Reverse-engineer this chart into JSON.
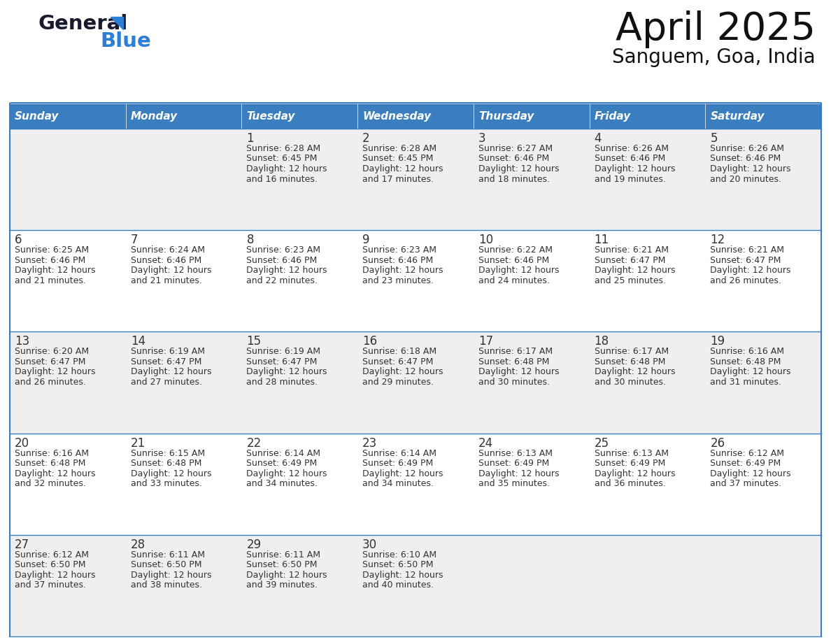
{
  "title": "April 2025",
  "subtitle": "Sanguem, Goa, India",
  "header_color": "#3a7ebf",
  "header_text_color": "#ffffff",
  "days_of_week": [
    "Sunday",
    "Monday",
    "Tuesday",
    "Wednesday",
    "Thursday",
    "Friday",
    "Saturday"
  ],
  "background_color": "#ffffff",
  "cell_bg_odd": "#efefef",
  "cell_bg_even": "#ffffff",
  "border_color": "#3a7ebf",
  "text_color": "#333333",
  "calendar_data": [
    [
      null,
      null,
      {
        "day": 1,
        "sunrise": "6:28 AM",
        "sunset": "6:45 PM",
        "daylight": "12 hours and 16 minutes."
      },
      {
        "day": 2,
        "sunrise": "6:28 AM",
        "sunset": "6:45 PM",
        "daylight": "12 hours and 17 minutes."
      },
      {
        "day": 3,
        "sunrise": "6:27 AM",
        "sunset": "6:46 PM",
        "daylight": "12 hours and 18 minutes."
      },
      {
        "day": 4,
        "sunrise": "6:26 AM",
        "sunset": "6:46 PM",
        "daylight": "12 hours and 19 minutes."
      },
      {
        "day": 5,
        "sunrise": "6:26 AM",
        "sunset": "6:46 PM",
        "daylight": "12 hours and 20 minutes."
      }
    ],
    [
      {
        "day": 6,
        "sunrise": "6:25 AM",
        "sunset": "6:46 PM",
        "daylight": "12 hours and 21 minutes."
      },
      {
        "day": 7,
        "sunrise": "6:24 AM",
        "sunset": "6:46 PM",
        "daylight": "12 hours and 21 minutes."
      },
      {
        "day": 8,
        "sunrise": "6:23 AM",
        "sunset": "6:46 PM",
        "daylight": "12 hours and 22 minutes."
      },
      {
        "day": 9,
        "sunrise": "6:23 AM",
        "sunset": "6:46 PM",
        "daylight": "12 hours and 23 minutes."
      },
      {
        "day": 10,
        "sunrise": "6:22 AM",
        "sunset": "6:46 PM",
        "daylight": "12 hours and 24 minutes."
      },
      {
        "day": 11,
        "sunrise": "6:21 AM",
        "sunset": "6:47 PM",
        "daylight": "12 hours and 25 minutes."
      },
      {
        "day": 12,
        "sunrise": "6:21 AM",
        "sunset": "6:47 PM",
        "daylight": "12 hours and 26 minutes."
      }
    ],
    [
      {
        "day": 13,
        "sunrise": "6:20 AM",
        "sunset": "6:47 PM",
        "daylight": "12 hours and 26 minutes."
      },
      {
        "day": 14,
        "sunrise": "6:19 AM",
        "sunset": "6:47 PM",
        "daylight": "12 hours and 27 minutes."
      },
      {
        "day": 15,
        "sunrise": "6:19 AM",
        "sunset": "6:47 PM",
        "daylight": "12 hours and 28 minutes."
      },
      {
        "day": 16,
        "sunrise": "6:18 AM",
        "sunset": "6:47 PM",
        "daylight": "12 hours and 29 minutes."
      },
      {
        "day": 17,
        "sunrise": "6:17 AM",
        "sunset": "6:48 PM",
        "daylight": "12 hours and 30 minutes."
      },
      {
        "day": 18,
        "sunrise": "6:17 AM",
        "sunset": "6:48 PM",
        "daylight": "12 hours and 30 minutes."
      },
      {
        "day": 19,
        "sunrise": "6:16 AM",
        "sunset": "6:48 PM",
        "daylight": "12 hours and 31 minutes."
      }
    ],
    [
      {
        "day": 20,
        "sunrise": "6:16 AM",
        "sunset": "6:48 PM",
        "daylight": "12 hours and 32 minutes."
      },
      {
        "day": 21,
        "sunrise": "6:15 AM",
        "sunset": "6:48 PM",
        "daylight": "12 hours and 33 minutes."
      },
      {
        "day": 22,
        "sunrise": "6:14 AM",
        "sunset": "6:49 PM",
        "daylight": "12 hours and 34 minutes."
      },
      {
        "day": 23,
        "sunrise": "6:14 AM",
        "sunset": "6:49 PM",
        "daylight": "12 hours and 34 minutes."
      },
      {
        "day": 24,
        "sunrise": "6:13 AM",
        "sunset": "6:49 PM",
        "daylight": "12 hours and 35 minutes."
      },
      {
        "day": 25,
        "sunrise": "6:13 AM",
        "sunset": "6:49 PM",
        "daylight": "12 hours and 36 minutes."
      },
      {
        "day": 26,
        "sunrise": "6:12 AM",
        "sunset": "6:49 PM",
        "daylight": "12 hours and 37 minutes."
      }
    ],
    [
      {
        "day": 27,
        "sunrise": "6:12 AM",
        "sunset": "6:50 PM",
        "daylight": "12 hours and 37 minutes."
      },
      {
        "day": 28,
        "sunrise": "6:11 AM",
        "sunset": "6:50 PM",
        "daylight": "12 hours and 38 minutes."
      },
      {
        "day": 29,
        "sunrise": "6:11 AM",
        "sunset": "6:50 PM",
        "daylight": "12 hours and 39 minutes."
      },
      {
        "day": 30,
        "sunrise": "6:10 AM",
        "sunset": "6:50 PM",
        "daylight": "12 hours and 40 minutes."
      },
      null,
      null,
      null
    ]
  ],
  "logo_color_general": "#1a1a2e",
  "logo_color_blue": "#2b7fd4",
  "logo_triangle_color": "#2b7fd4",
  "title_fontsize": 40,
  "subtitle_fontsize": 20,
  "header_fontsize": 11,
  "day_num_fontsize": 12,
  "cell_text_fontsize": 9
}
